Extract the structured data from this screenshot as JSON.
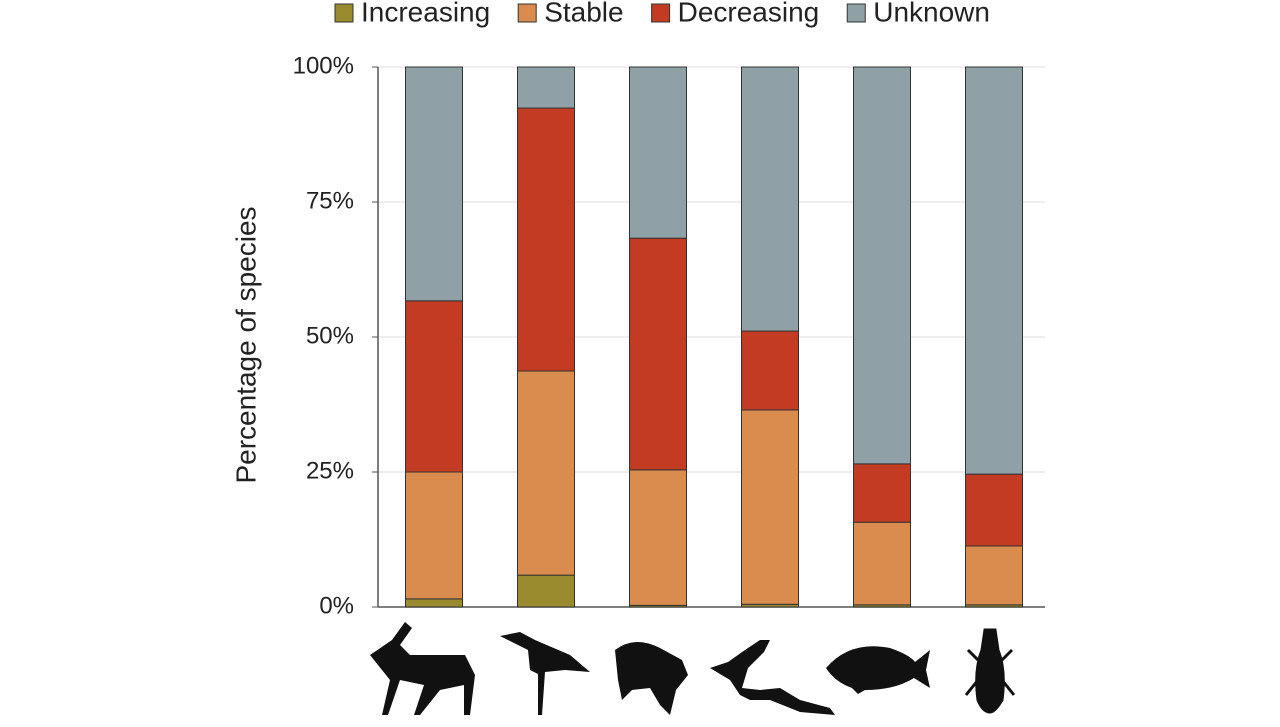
{
  "chart_data": {
    "type": "stacked_bar",
    "ylabel": "Percentage of species",
    "categories": [
      null,
      null,
      null,
      null,
      null,
      null
    ],
    "series": [
      {
        "name": "Increasing",
        "color": "#9a8c2e",
        "values": [
          1.5,
          5.9,
          0.3,
          0.5,
          0.4,
          0.4
        ]
      },
      {
        "name": "Stable",
        "color": "#d98c4e",
        "values": [
          23.5,
          37.8,
          25.1,
          36.0,
          15.3,
          10.9
        ]
      },
      {
        "name": "Decreasing",
        "color": "#c23b22",
        "values": [
          31.7,
          48.7,
          42.9,
          14.6,
          10.8,
          13.3
        ]
      },
      {
        "name": "Unknown",
        "color": "#8fa0a6",
        "values": [
          43.3,
          7.6,
          31.7,
          48.9,
          73.5,
          75.4
        ]
      }
    ],
    "ylim": [
      0,
      100
    ],
    "yticks": [
      {
        "value": 0,
        "label": "0%"
      },
      {
        "value": 25,
        "label": "25%"
      },
      {
        "value": 50,
        "label": "50%"
      },
      {
        "value": 75,
        "label": "75%"
      },
      {
        "value": 100,
        "label": "100%"
      }
    ],
    "grid": true,
    "legend": "top"
  }
}
